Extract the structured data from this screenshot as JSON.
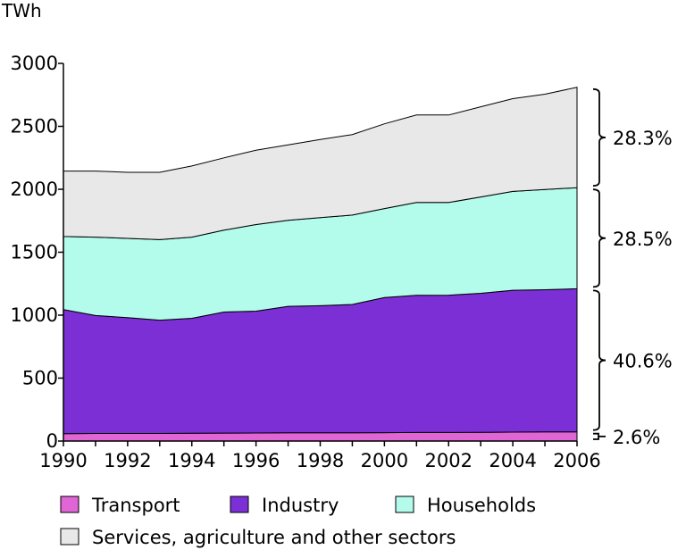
{
  "chart_data": {
    "type": "area",
    "stacked": true,
    "ylabel": "TWh",
    "xlabel": "",
    "ylim": [
      0,
      3000
    ],
    "yticks": [
      "0",
      "500",
      "1000",
      "1500",
      "2000",
      "2500",
      "3000"
    ],
    "xlim": [
      1990,
      2006
    ],
    "xticks": [
      "1990",
      "1992",
      "1994",
      "1996",
      "1998",
      "2000",
      "2002",
      "2004",
      "2006"
    ],
    "x": [
      1990,
      1991,
      1992,
      1993,
      1994,
      1995,
      1996,
      1997,
      1998,
      1999,
      2000,
      2001,
      2002,
      2003,
      2004,
      2005,
      2006
    ],
    "series": [
      {
        "name": "Transport",
        "color": "#e066d6",
        "values": [
          58,
          60,
          60,
          60,
          62,
          63,
          64,
          65,
          66,
          66,
          67,
          68,
          68,
          69,
          71,
          72,
          73
        ]
      },
      {
        "name": "Industry",
        "color": "#7b2fd4",
        "values": [
          987,
          937,
          920,
          900,
          913,
          962,
          968,
          1005,
          1009,
          1019,
          1073,
          1090,
          1091,
          1105,
          1127,
          1130,
          1137
        ]
      },
      {
        "name": "Households",
        "color": "#b3fbea",
        "values": [
          580,
          623,
          630,
          640,
          645,
          650,
          688,
          683,
          700,
          710,
          707,
          737,
          736,
          765,
          785,
          796,
          803
        ]
      },
      {
        "name": "Services, agriculture and other sectors",
        "color": "#e8e8e8",
        "values": [
          520,
          525,
          525,
          535,
          565,
          575,
          590,
          600,
          620,
          640,
          673,
          695,
          695,
          716,
          737,
          757,
          797
        ]
      }
    ],
    "shares": [
      {
        "series": "Services, agriculture and other sectors",
        "label": "28.3%"
      },
      {
        "series": "Households",
        "label": "28.5%"
      },
      {
        "series": "Industry",
        "label": "40.6%"
      },
      {
        "series": "Transport",
        "label": "2.6%"
      }
    ],
    "legend": {
      "position": "bottom",
      "items": [
        "Transport",
        "Industry",
        "Households",
        "Services, agriculture and other sectors"
      ]
    }
  }
}
